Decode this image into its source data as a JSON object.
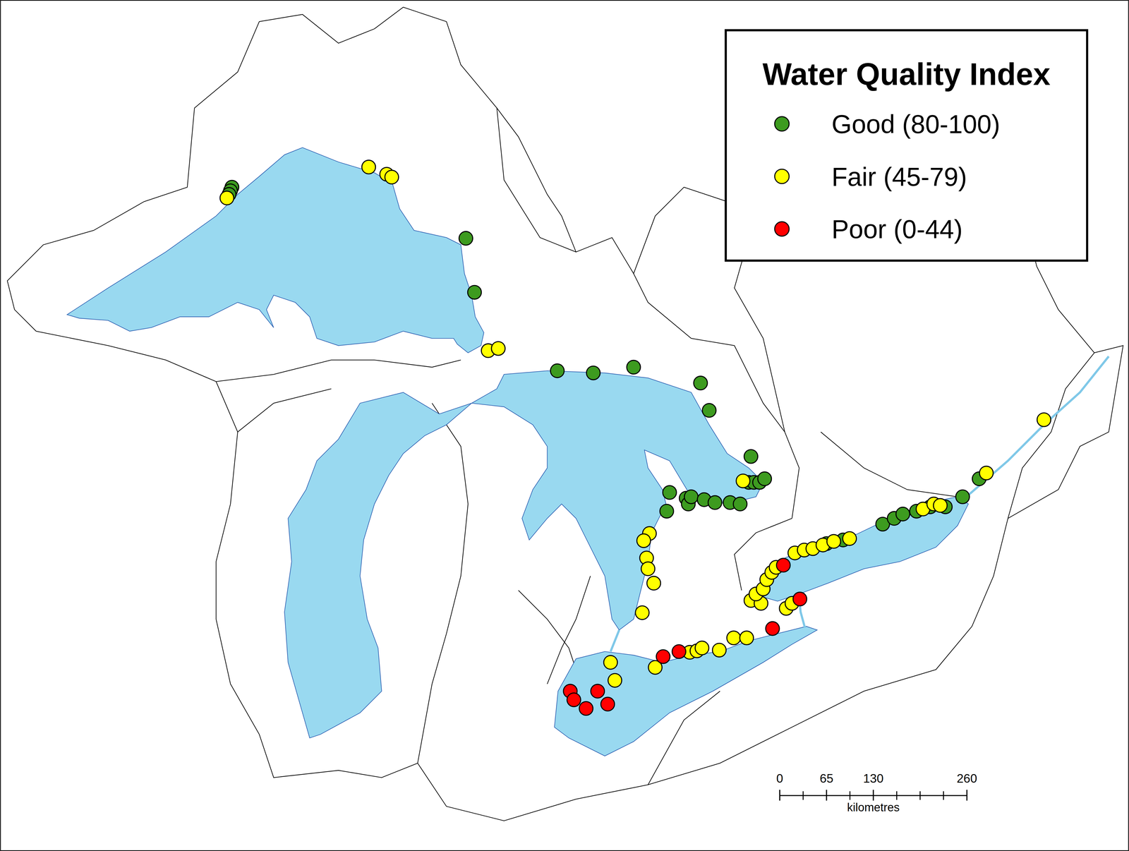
{
  "chart_data": {
    "type": "map",
    "title": "Water Quality Index",
    "series": [
      {
        "name": "Good (80-100)",
        "color": "#3d9b1f",
        "x": [
          322,
          320,
          318,
          647,
          659,
          774,
          824,
          880,
          973,
          985,
          1043,
          1040,
          1047,
          1055,
          1062,
          930,
          926,
          953,
          956,
          960,
          978,
          993,
          1014,
          1028,
          1148,
          1171,
          1226,
          1242,
          1254,
          1273,
          1292,
          1313,
          1337,
          1360
        ],
        "y": [
          922,
          917,
          912,
          851,
          776,
          667,
          664,
          672,
          650,
          612,
          548,
          512,
          512,
          512,
          517,
          498,
          472,
          490,
          482,
          492,
          488,
          484,
          484,
          482,
          427,
          432,
          454,
          462,
          468,
          472,
          478,
          478,
          492,
          517
        ]
      },
      {
        "name": "Fair (45-79)",
        "color": "#ffff00",
        "x": [
          315,
          512,
          537,
          544,
          678,
          692,
          1032,
          902,
          894,
          898,
          900,
          908,
          892,
          848,
          854,
          910,
          958,
          968,
          975,
          999,
          1019,
          1037,
          1092,
          1100,
          1043,
          1057,
          1050,
          1060,
          1065,
          1072,
          1078,
          1104,
          1117,
          1129,
          1143,
          1158,
          1180,
          1282,
          1297,
          1306,
          1370,
          1450
        ],
        "y": [
          907,
          950,
          940,
          936,
          695,
          698,
          514,
          441,
          431,
          407,
          392,
          372,
          331,
          262,
          237,
          255,
          276,
          278,
          282,
          279,
          296,
          296,
          337,
          344,
          348,
          344,
          357,
          364,
          377,
          387,
          394,
          414,
          418,
          420,
          425,
          430,
          434,
          475,
          482,
          480,
          525,
          599
        ]
      },
      {
        "name": "Poor (0-44)",
        "color": "#ff0000",
        "x": [
          792,
          797,
          814,
          830,
          844,
          921,
          943,
          1073,
          1088,
          1111
        ],
        "y": [
          222,
          210,
          198,
          222,
          204,
          270,
          277,
          309,
          397,
          350
        ]
      }
    ],
    "xlim": [
      0,
      1568
    ],
    "ylim": [
      0,
      1182
    ],
    "scale_bar": {
      "ticks": [
        0,
        65,
        130,
        260
      ],
      "minor_ticks": [
        32.5,
        97.5,
        162.5,
        195,
        227.5
      ],
      "label": "kilometres"
    }
  }
}
